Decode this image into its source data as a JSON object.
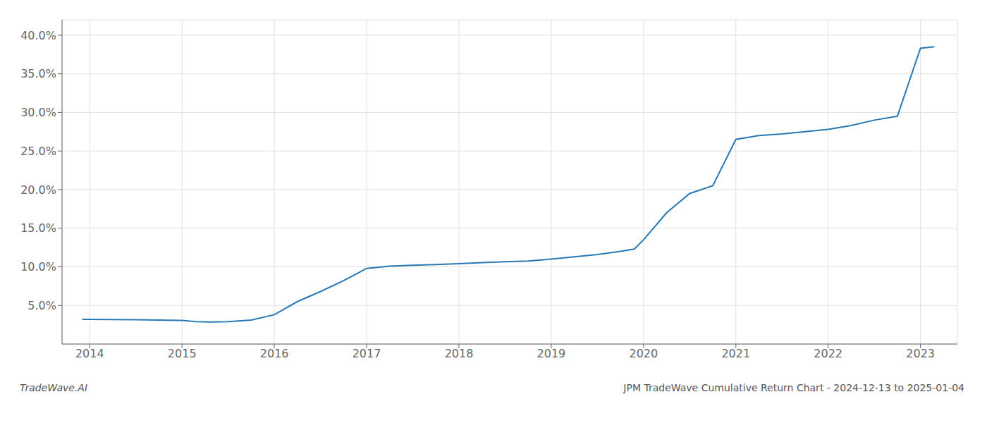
{
  "chart_data": {
    "type": "line",
    "title": "JPM TradeWave Cumulative Return Chart - 2024-12-13 to 2025-01-04",
    "annotations": [
      "TradeWave.AI"
    ],
    "color": "#2878b5",
    "grid": true,
    "x": [
      2013.92,
      2014.0,
      2014.25,
      2014.5,
      2014.75,
      2015.0,
      2015.15,
      2015.3,
      2015.5,
      2015.75,
      2016.0,
      2016.25,
      2016.5,
      2016.75,
      2017.0,
      2017.25,
      2017.5,
      2017.75,
      2018.0,
      2018.25,
      2018.5,
      2018.75,
      2019.0,
      2019.25,
      2019.5,
      2019.75,
      2019.9,
      2020.0,
      2020.25,
      2020.5,
      2020.75,
      2021.0,
      2021.25,
      2021.5,
      2021.75,
      2022.0,
      2022.25,
      2022.5,
      2022.75,
      2023.0,
      2023.15
    ],
    "values": [
      3.2,
      3.2,
      3.18,
      3.15,
      3.1,
      3.05,
      2.9,
      2.85,
      2.9,
      3.1,
      3.8,
      5.5,
      6.8,
      8.2,
      9.8,
      10.1,
      10.2,
      10.3,
      10.4,
      10.55,
      10.65,
      10.75,
      11.0,
      11.3,
      11.6,
      12.0,
      12.3,
      13.5,
      17.0,
      19.5,
      20.5,
      26.5,
      27.0,
      27.2,
      27.5,
      27.8,
      28.3,
      29.0,
      29.5,
      38.3,
      38.5
    ],
    "xlim": [
      2013.7,
      2023.4
    ],
    "xticks": [
      2014,
      2015,
      2016,
      2017,
      2018,
      2019,
      2020,
      2021,
      2022,
      2023
    ],
    "ylim": [
      0,
      42
    ],
    "yticks": [
      {
        "value": 5.0,
        "label": "5.0%"
      },
      {
        "value": 10.0,
        "label": "10.0%"
      },
      {
        "value": 15.0,
        "label": "15.0%"
      },
      {
        "value": 20.0,
        "label": "20.0%"
      },
      {
        "value": 25.0,
        "label": "25.0%"
      },
      {
        "value": 30.0,
        "label": "30.0%"
      },
      {
        "value": 35.0,
        "label": "35.0%"
      },
      {
        "value": 40.0,
        "label": "40.0%"
      }
    ]
  }
}
